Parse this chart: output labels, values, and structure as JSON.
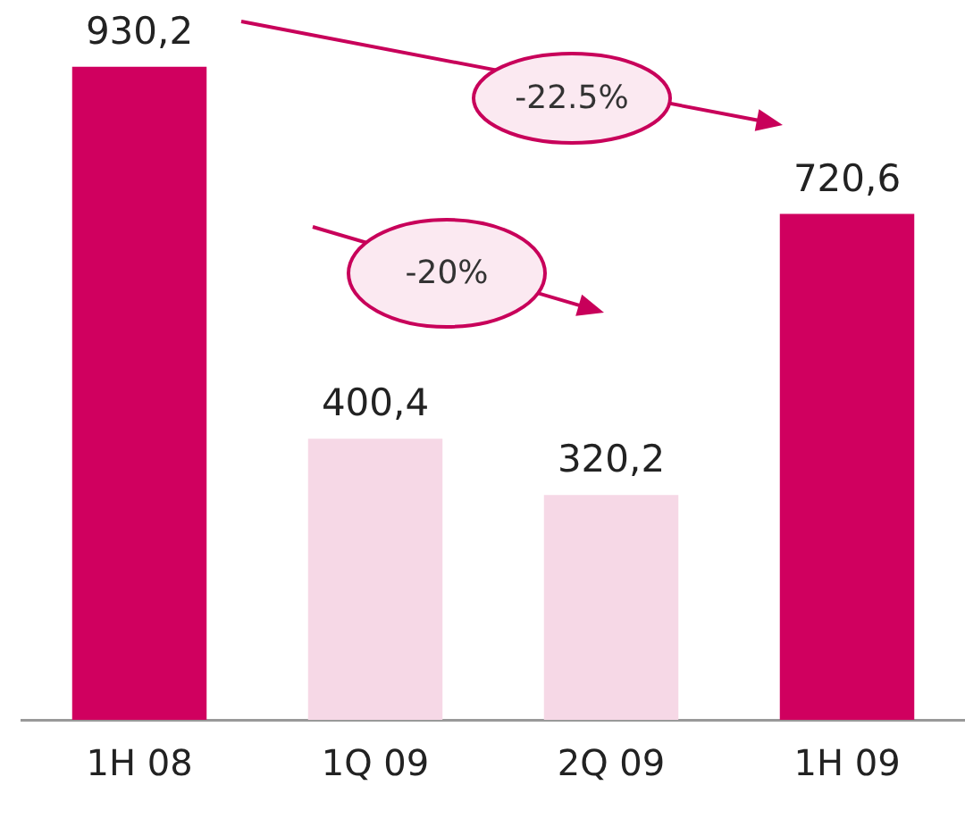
{
  "chart_data": {
    "type": "bar",
    "categories": [
      "1H 08",
      "1Q 09",
      "2Q 09",
      "1H 09"
    ],
    "values": [
      930.2,
      400.4,
      320.2,
      720.6
    ],
    "colors": [
      "#d0005f",
      "#f6d8e6",
      "#f6d8e6",
      "#d0005f"
    ],
    "value_labels": [
      "930,2",
      "400,4",
      "320,2",
      "720,6"
    ],
    "tick_labels": "x",
    "grid": false,
    "legend": false,
    "annotations": [
      "-22.5%",
      "-20%"
    ]
  }
}
